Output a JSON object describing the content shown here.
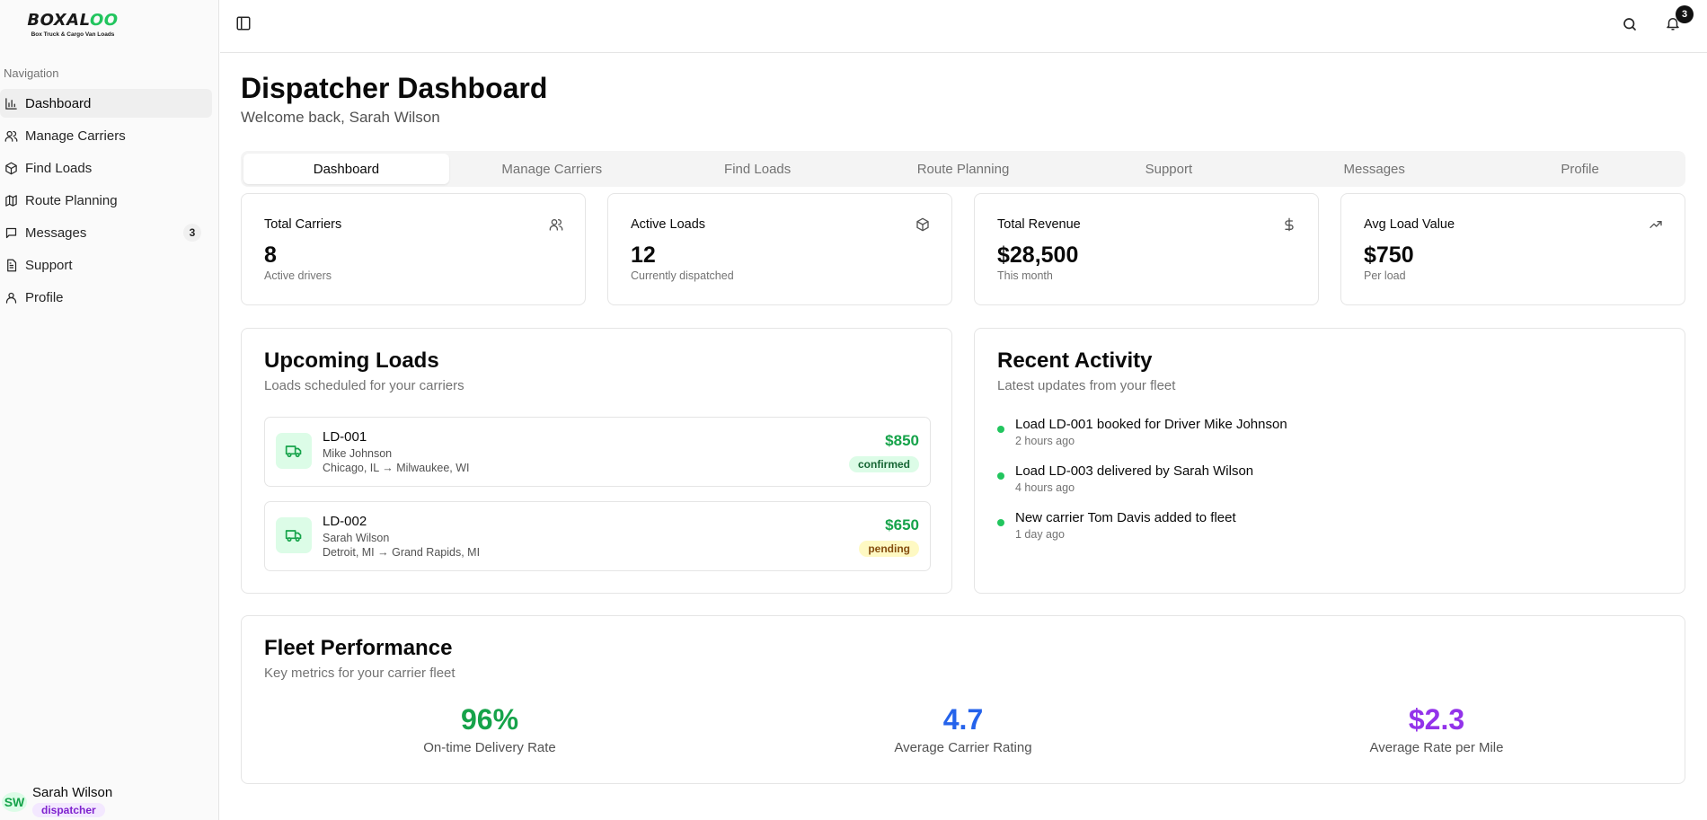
{
  "brand": {
    "name_pre": "BOXAL",
    "name_oo": "OO",
    "tagline": "Box Truck & Cargo Van Loads",
    "accent": "#22c55e"
  },
  "sidebar": {
    "heading": "Navigation",
    "items": [
      {
        "label": "Dashboard",
        "icon": "bar-chart-icon",
        "active": true
      },
      {
        "label": "Manage Carriers",
        "icon": "users-icon"
      },
      {
        "label": "Find Loads",
        "icon": "package-icon"
      },
      {
        "label": "Route Planning",
        "icon": "map-icon"
      },
      {
        "label": "Messages",
        "icon": "message-icon",
        "badge": "3"
      },
      {
        "label": "Support",
        "icon": "document-icon"
      },
      {
        "label": "Profile",
        "icon": "user-icon"
      }
    ],
    "user": {
      "initials": "SW",
      "name": "Sarah Wilson",
      "role": "dispatcher"
    }
  },
  "topbar": {
    "notification_count": "3"
  },
  "header": {
    "title": "Dispatcher Dashboard",
    "subtitle": "Welcome back, Sarah Wilson"
  },
  "tabs": [
    "Dashboard",
    "Manage Carriers",
    "Find Loads",
    "Route Planning",
    "Support",
    "Messages",
    "Profile"
  ],
  "stats": [
    {
      "label": "Total Carriers",
      "value": "8",
      "caption": "Active drivers",
      "icon": "users-icon"
    },
    {
      "label": "Active Loads",
      "value": "12",
      "caption": "Currently dispatched",
      "icon": "package-icon"
    },
    {
      "label": "Total Revenue",
      "value": "$28,500",
      "caption": "This month",
      "icon": "dollar-icon"
    },
    {
      "label": "Avg Load Value",
      "value": "$750",
      "caption": "Per load",
      "icon": "trending-up-icon"
    }
  ],
  "upcoming": {
    "title": "Upcoming Loads",
    "subtitle": "Loads scheduled for your carriers",
    "loads": [
      {
        "id": "LD-001",
        "driver": "Mike Johnson",
        "route": "Chicago, IL → Milwaukee, WI",
        "price": "$850",
        "status": "confirmed"
      },
      {
        "id": "LD-002",
        "driver": "Sarah Wilson",
        "route": "Detroit, MI → Grand Rapids, MI",
        "price": "$650",
        "status": "pending"
      }
    ]
  },
  "activity": {
    "title": "Recent Activity",
    "subtitle": "Latest updates from your fleet",
    "items": [
      {
        "text": "Load LD-001 booked for Driver Mike Johnson",
        "time": "2 hours ago"
      },
      {
        "text": "Load LD-003 delivered by Sarah Wilson",
        "time": "4 hours ago"
      },
      {
        "text": "New carrier Tom Davis added to fleet",
        "time": "1 day ago"
      }
    ]
  },
  "fleet": {
    "title": "Fleet Performance",
    "subtitle": "Key metrics for your carrier fleet",
    "metrics": [
      {
        "value": "96%",
        "label": "On-time Delivery Rate",
        "color": "#16a34a"
      },
      {
        "value": "4.7",
        "label": "Average Carrier Rating",
        "color": "#2563eb"
      },
      {
        "value": "$2.3",
        "label": "Average Rate per Mile",
        "color": "#9333ea"
      }
    ]
  }
}
